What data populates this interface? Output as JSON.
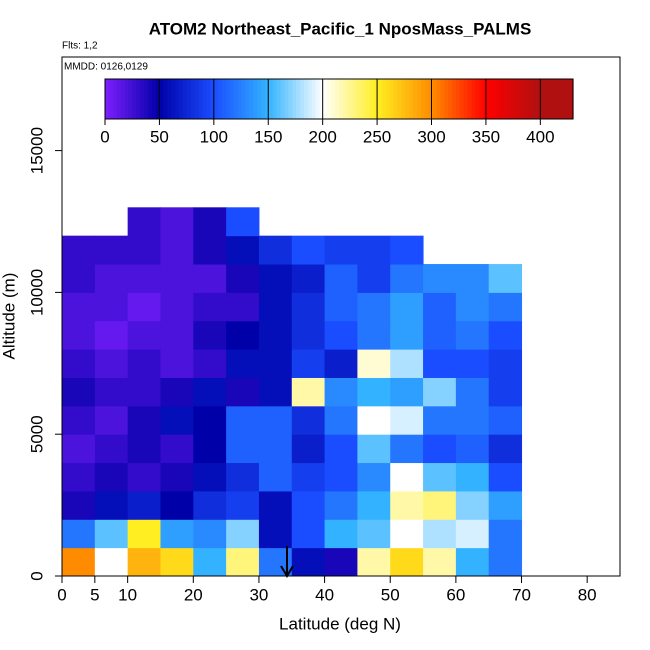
{
  "chart_data": {
    "type": "heatmap",
    "title": "ATOM2 Northeast_Pacific_1 NposMass_PALMS",
    "flights_note": "Flts: 1,2",
    "dates_note": "MMDD: 0126,0129",
    "x_label": "Latitude (deg N)",
    "y_label": "Altitude (m)",
    "xlim": [
      0,
      85
    ],
    "xticks": [
      0,
      5,
      10,
      20,
      30,
      40,
      50,
      60,
      70,
      80
    ],
    "ylim": [
      0,
      18300
    ],
    "yticks": [
      0,
      5000,
      10000,
      15000
    ],
    "x_bins": [
      0,
      5,
      10,
      15,
      20,
      25,
      30,
      35,
      40,
      45,
      50,
      55,
      60,
      65,
      70
    ],
    "y_bins": [
      0,
      1000,
      2000,
      3000,
      4000,
      5000,
      6000,
      7000,
      8000,
      9000,
      10000,
      11000,
      12000,
      13000
    ],
    "values": [
      [
        300,
        200,
        280,
        260,
        150,
        230,
        120,
        60,
        40,
        220,
        260,
        220,
        150,
        120
      ],
      [
        120,
        160,
        250,
        140,
        130,
        170,
        60,
        100,
        150,
        160,
        200,
        180,
        190,
        120
      ],
      [
        40,
        60,
        70,
        50,
        80,
        90,
        60,
        100,
        120,
        150,
        220,
        230,
        170,
        140
      ],
      [
        30,
        40,
        30,
        40,
        60,
        80,
        110,
        90,
        100,
        130,
        200,
        160,
        150,
        100
      ],
      [
        20,
        30,
        40,
        30,
        50,
        110,
        110,
        70,
        100,
        160,
        120,
        100,
        110,
        80
      ],
      [
        30,
        20,
        40,
        60,
        50,
        110,
        110,
        80,
        120,
        200,
        190,
        120,
        120,
        110
      ],
      [
        40,
        30,
        30,
        40,
        60,
        40,
        60,
        220,
        130,
        150,
        140,
        170,
        120,
        90
      ],
      [
        30,
        20,
        30,
        20,
        30,
        60,
        60,
        90,
        70,
        210,
        180,
        100,
        100,
        90
      ],
      [
        20,
        10,
        20,
        20,
        40,
        50,
        60,
        80,
        100,
        120,
        140,
        110,
        120,
        100
      ],
      [
        20,
        20,
        10,
        20,
        30,
        30,
        60,
        80,
        110,
        120,
        140,
        110,
        130,
        120
      ],
      [
        30,
        20,
        20,
        20,
        20,
        40,
        60,
        70,
        110,
        90,
        120,
        130,
        130,
        160
      ],
      [
        30,
        30,
        30,
        20,
        40,
        60,
        80,
        100,
        90,
        90,
        100,
        null,
        null,
        null
      ],
      [
        null,
        null,
        30,
        20,
        40,
        100,
        null,
        null,
        null,
        null,
        null,
        null,
        null,
        null
      ]
    ],
    "colorbar": {
      "lim": [
        0,
        430
      ],
      "ticks": [
        0,
        50,
        100,
        150,
        200,
        250,
        300,
        350,
        400
      ],
      "colors": [
        "#7f1fff",
        "#0000a8",
        "#1a4dff",
        "#33b3ff",
        "#ffffff",
        "#ffee22",
        "#ff8c00",
        "#ff0000",
        "#b01010"
      ]
    }
  }
}
